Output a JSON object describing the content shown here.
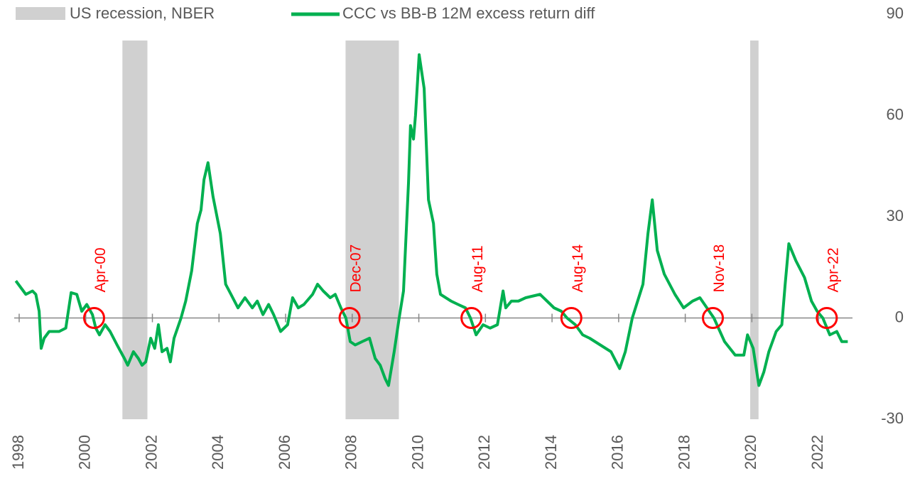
{
  "chart_data": {
    "type": "line",
    "recession": {
      "name": "US recession, NBER",
      "color": "#d0d0d0",
      "periods": [
        [
          2001.1,
          2001.85
        ],
        [
          2007.8,
          2009.4
        ],
        [
          2019.95,
          2020.2
        ]
      ]
    },
    "x": [
      1997.9,
      1998.2,
      1998.4,
      1998.5,
      1998.6,
      1998.66,
      1998.75,
      1998.9,
      1999.2,
      1999.4,
      1999.56,
      1999.73,
      1999.88,
      2000.03,
      2000.2,
      2000.3,
      2000.41,
      2000.58,
      2000.73,
      2000.94,
      2001.16,
      2001.26,
      2001.43,
      2001.58,
      2001.69,
      2001.8,
      2001.95,
      2002.07,
      2002.18,
      2002.29,
      2002.44,
      2002.54,
      2002.65,
      2002.86,
      2003.0,
      2003.18,
      2003.35,
      2003.46,
      2003.55,
      2003.67,
      2003.82,
      2004.04,
      2004.2,
      2004.36,
      2004.57,
      2004.78,
      2005.0,
      2005.15,
      2005.32,
      2005.49,
      2005.64,
      2005.85,
      2006.06,
      2006.21,
      2006.38,
      2006.55,
      2006.81,
      2006.96,
      2007.13,
      2007.34,
      2007.49,
      2007.66,
      2007.81,
      2007.94,
      2008.09,
      2008.3,
      2008.52,
      2008.69,
      2008.84,
      2008.99,
      2009.09,
      2009.26,
      2009.41,
      2009.54,
      2009.69,
      2009.75,
      2009.84,
      2009.9,
      2010.01,
      2010.16,
      2010.29,
      2010.44,
      2010.54,
      2010.65,
      2010.97,
      2011.18,
      2011.4,
      2011.55,
      2011.72,
      2011.93,
      2012.14,
      2012.36,
      2012.53,
      2012.61,
      2012.78,
      2012.99,
      2013.21,
      2013.64,
      2013.85,
      2014.06,
      2014.28,
      2014.45,
      2014.7,
      2014.92,
      2015.13,
      2015.45,
      2015.77,
      2016.03,
      2016.2,
      2016.41,
      2016.73,
      2016.88,
      2017.01,
      2017.16,
      2017.37,
      2017.69,
      2017.95,
      2018.22,
      2018.44,
      2018.65,
      2018.86,
      2019.18,
      2019.5,
      2019.76,
      2019.87,
      2020.04,
      2020.21,
      2020.36,
      2020.51,
      2020.73,
      2020.9,
      2021.0,
      2021.11,
      2021.32,
      2021.58,
      2021.79,
      2021.96,
      2022.13,
      2022.34,
      2022.55,
      2022.7,
      2022.88
    ],
    "series": [
      {
        "name": "CCC vs BB-B 12M excess return diff",
        "color": "#00b050",
        "values": [
          11,
          7,
          8,
          7,
          2,
          -9,
          -6,
          -4,
          -4,
          -3,
          7.5,
          7,
          2,
          4,
          1,
          -3,
          -5,
          -2,
          -4,
          -8,
          -12,
          -14,
          -10,
          -12,
          -14,
          -13,
          -6,
          -9,
          -2,
          -10,
          -9,
          -13,
          -6,
          0,
          5,
          14,
          28,
          32,
          41,
          46,
          36,
          25,
          10,
          7,
          3,
          6,
          3,
          5,
          1,
          4,
          1,
          -4,
          -2,
          6,
          3,
          4,
          7,
          10,
          8,
          6,
          7,
          3,
          0,
          -7,
          -8,
          -7,
          -6,
          -12,
          -14,
          -18,
          -20,
          -10,
          0,
          8,
          40,
          57,
          53,
          60,
          78,
          68,
          35,
          28,
          13,
          7,
          5,
          4,
          3,
          0,
          -5,
          -2,
          -3,
          -2,
          8,
          3,
          5,
          5,
          6,
          7,
          5,
          3,
          2,
          0,
          -2,
          -5,
          -6,
          -8,
          -10,
          -15,
          -10,
          0,
          10,
          25,
          35,
          20,
          13,
          7,
          3,
          5,
          6,
          3,
          0,
          -7,
          -11,
          -11,
          -5,
          -9,
          -20,
          -16,
          -10,
          -4,
          -2,
          10,
          22,
          17,
          12,
          5,
          2,
          0,
          -5,
          -4,
          -7,
          -7
        ]
      }
    ],
    "annotations": [
      {
        "label": "Apr-00",
        "x": 2000.25,
        "y": 0
      },
      {
        "label": "Dec-07",
        "x": 2007.92,
        "y": 0
      },
      {
        "label": "Aug-11",
        "x": 2011.58,
        "y": 0
      },
      {
        "label": "Aug-14",
        "x": 2014.58,
        "y": 0
      },
      {
        "label": "Nov-18",
        "x": 2018.83,
        "y": 0
      },
      {
        "label": "Apr-22",
        "x": 2022.25,
        "y": 0
      }
    ],
    "xlim": [
      1997.9,
      2023
    ],
    "xticks": [
      1998,
      2000,
      2002,
      2004,
      2006,
      2008,
      2010,
      2012,
      2014,
      2016,
      2018,
      2020,
      2022
    ],
    "ylim": [
      -30,
      90
    ],
    "yticks": [
      -30,
      0,
      30,
      60,
      90
    ]
  }
}
